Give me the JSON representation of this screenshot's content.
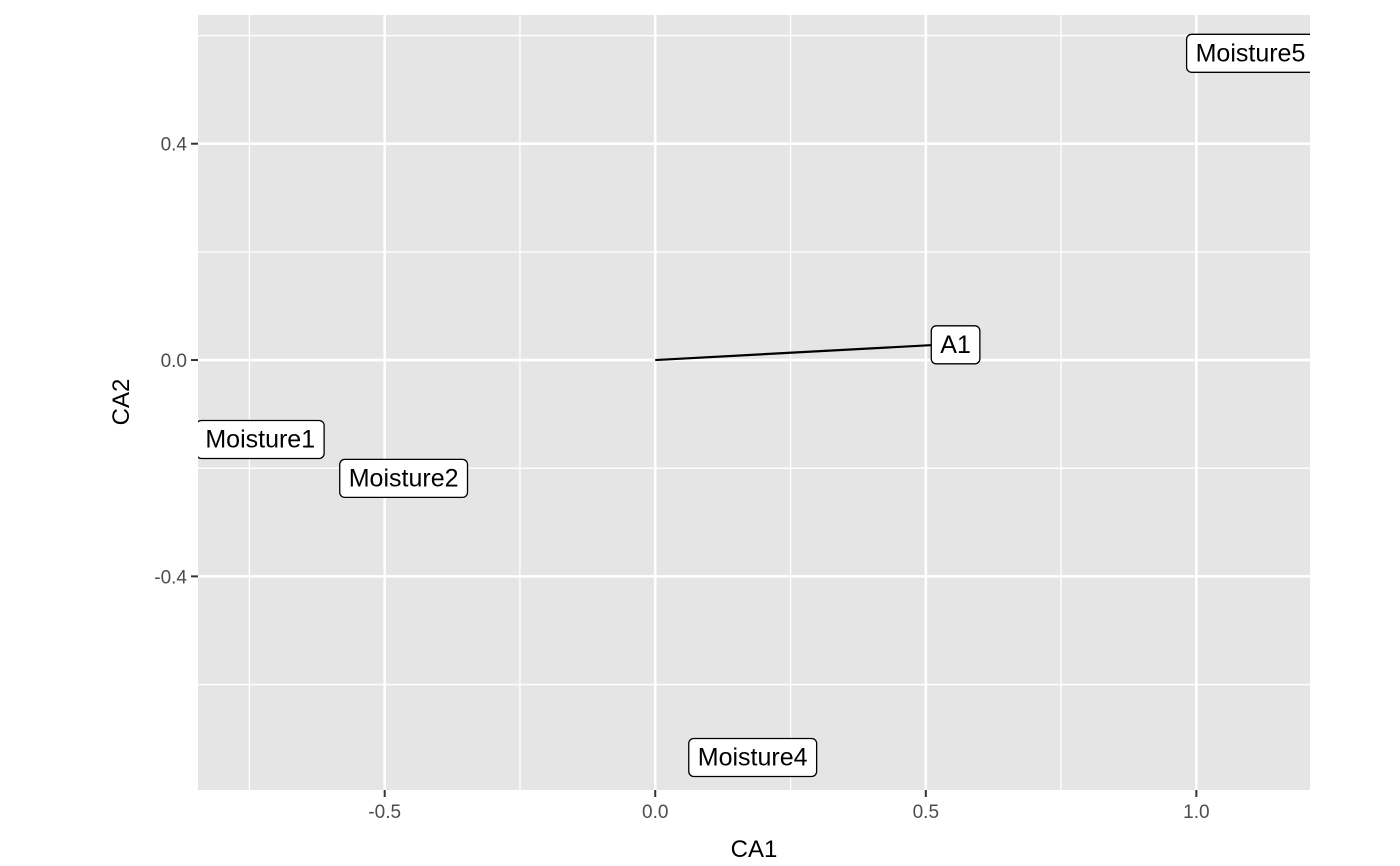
{
  "chart_data": {
    "type": "scatter",
    "title": "",
    "xlabel": "CA1",
    "ylabel": "CA2",
    "xlim": [
      -0.845,
      1.21
    ],
    "ylim": [
      -0.795,
      0.638
    ],
    "x_major_ticks": [
      -0.5,
      0.0,
      0.5,
      1.0
    ],
    "x_tick_labels": [
      "-0.5",
      "0.0",
      "0.5",
      "1.0"
    ],
    "x_minor_ticks": [
      -0.75,
      -0.25,
      0.25,
      0.75
    ],
    "y_major_ticks": [
      -0.4,
      0.0,
      0.4
    ],
    "y_tick_labels": [
      "-0.4",
      "0.0",
      "0.4"
    ],
    "y_minor_ticks": [
      -0.6,
      -0.2,
      0.2,
      0.6
    ],
    "grid": true,
    "legend": "none",
    "colors": {
      "panel": "#e5e5e5",
      "grid": "#ffffff",
      "text": "#000000",
      "tick_text": "#4d4d4d"
    },
    "points": [
      {
        "label": "Moisture1",
        "x": -0.73,
        "y": -0.145
      },
      {
        "label": "Moisture2",
        "x": -0.465,
        "y": -0.217
      },
      {
        "label": "Moisture4",
        "x": 0.18,
        "y": -0.733
      },
      {
        "label": "Moisture5",
        "x": 1.1,
        "y": 0.569
      }
    ],
    "vectors": [
      {
        "label": "A1",
        "x0": 0.0,
        "y0": 0.0,
        "x1": 0.555,
        "y1": 0.03
      }
    ]
  }
}
